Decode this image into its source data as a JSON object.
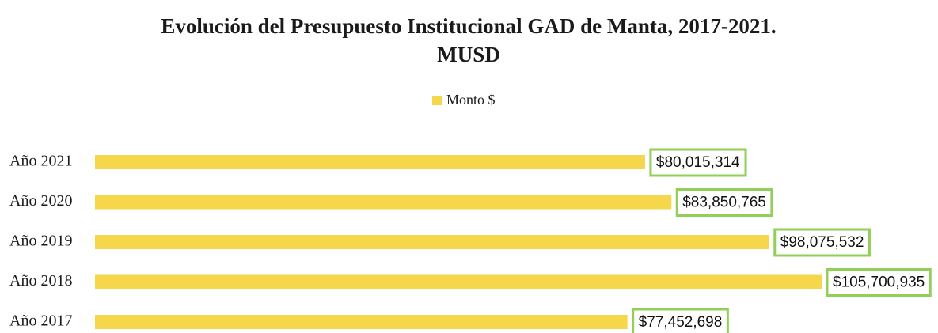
{
  "chart_data": {
    "type": "barh",
    "title": "Evolución del Presupuesto Institucional GAD de Manta, 2017-2021.",
    "subtitle": "MUSD",
    "categories": [
      "Año 2021",
      "Año 2020",
      "Año 2019",
      "Año 2018",
      "Año 2017"
    ],
    "series": [
      {
        "name": "Monto $",
        "color": "#f6d64a",
        "values": [
          80015314,
          83850765,
          98075532,
          105700935,
          77452698
        ],
        "value_labels": [
          "$80,015,314",
          "$83,850,765",
          "$98,075,532",
          "$105,700,935",
          "$77,452,698"
        ]
      }
    ],
    "label_border_color": "#92cf5a"
  }
}
